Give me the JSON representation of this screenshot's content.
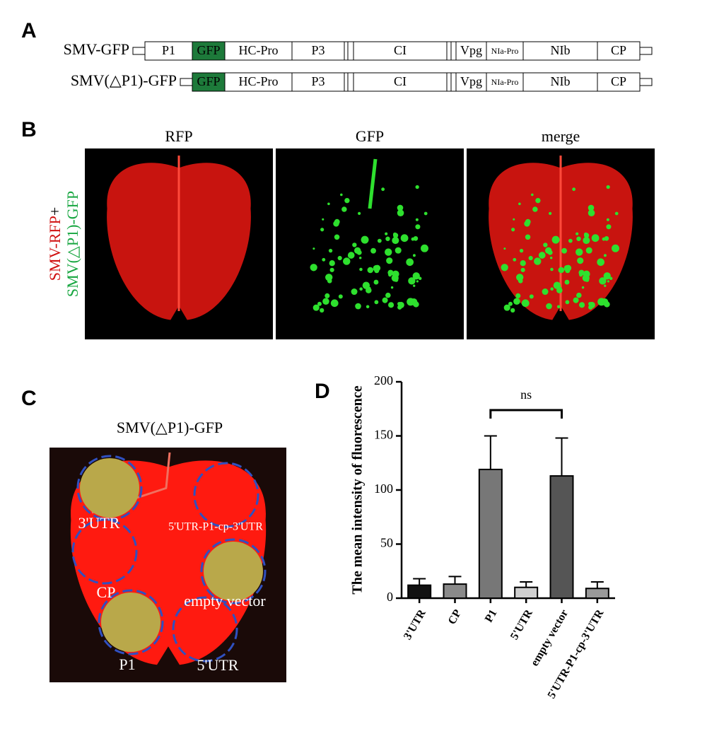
{
  "panel_labels": [
    "A",
    "B",
    "C",
    "D"
  ],
  "panel_a": {
    "rows": [
      {
        "name": "SMV-GFP",
        "segments": [
          "P1",
          "GFP",
          "HC-Pro",
          "P3",
          "CI",
          "Vpg",
          "NIa-Pro",
          "NIb",
          "CP"
        ]
      },
      {
        "name": "SMV(△P1)-GFP",
        "segments": [
          "GFP",
          "HC-Pro",
          "P3",
          "CI",
          "Vpg",
          "NIa-Pro",
          "NIb",
          "CP"
        ]
      }
    ]
  },
  "panel_b": {
    "columns": [
      "RFP",
      "GFP",
      "merge"
    ],
    "side_label": {
      "red": "SMV-RFP",
      "plus": "+",
      "green": "SMV(△P1)-GFP"
    }
  },
  "panel_c": {
    "title": "SMV(△P1)-GFP",
    "spots": [
      "3'UTR",
      "5'UTR-P1-cp-3'UTR",
      "CP",
      "empty vector",
      "P1",
      "5'UTR"
    ]
  },
  "chart_data": {
    "type": "bar",
    "y_label": "The mean intensity of fluorescence",
    "categories": [
      "3'UTR",
      "CP",
      "P1",
      "5'UTR",
      "empty vector",
      "5'UTR-P1-cp-3'UTR"
    ],
    "values": [
      12,
      13,
      119,
      10,
      113,
      9
    ],
    "errors": [
      6,
      7,
      31,
      5,
      35,
      6
    ],
    "colors": [
      "#111111",
      "#8a8a8a",
      "#777777",
      "#cfcfcf",
      "#555555",
      "#999999"
    ],
    "ylim": [
      0,
      200
    ],
    "yticks": [
      0,
      50,
      100,
      150,
      200
    ],
    "annotation": "ns"
  }
}
